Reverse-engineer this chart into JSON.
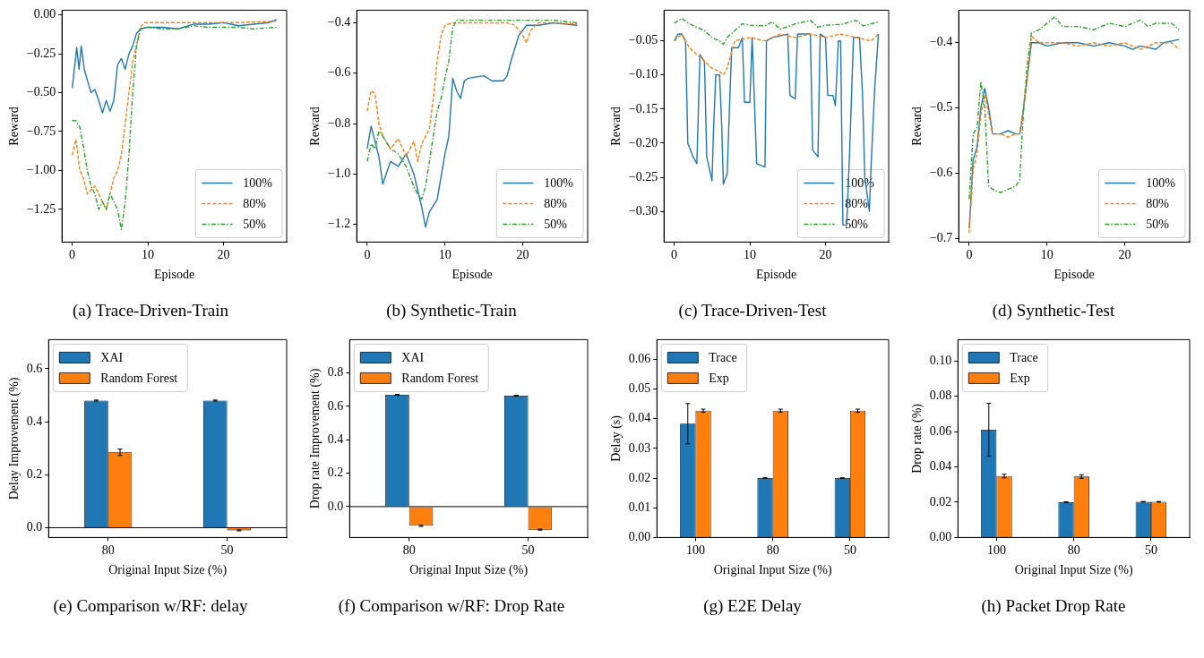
{
  "chart_data": [
    {
      "type": "line",
      "xlabel": "Episode",
      "ylabel": "Reward",
      "xlim": [
        -1.35,
        28.35
      ],
      "ylim": [
        -1.46,
        0.03
      ],
      "xticks": [
        0,
        10,
        20
      ],
      "yticks": [
        {
          "value": 0,
          "label": "0.00"
        },
        {
          "value": -0.25,
          "label": "−0.25"
        },
        {
          "value": -0.5,
          "label": "−0.50"
        },
        {
          "value": -0.75,
          "label": "−0.75"
        },
        {
          "value": -1,
          "label": "−1.00"
        },
        {
          "value": -1.25,
          "label": "−1.25"
        }
      ],
      "legend": "bottom right",
      "annotations": [
        "(a) Trace-Driven-Train"
      ],
      "series": [
        {
          "name": "100%",
          "color": "#1f77b4",
          "line_style": "solid",
          "x": [
            0,
            0.4,
            0.6,
            0.9,
            1.2,
            1.6,
            2,
            2.5,
            3,
            3.5,
            4,
            4.5,
            5,
            5.5,
            6,
            6.5,
            7,
            7.5,
            8,
            8.5,
            9,
            10,
            12,
            14,
            16,
            18,
            20,
            22,
            24,
            26,
            27
          ],
          "values": [
            -0.47,
            -0.3,
            -0.21,
            -0.35,
            -0.2,
            -0.35,
            -0.42,
            -0.5,
            -0.48,
            -0.55,
            -0.63,
            -0.55,
            -0.62,
            -0.55,
            -0.32,
            -0.28,
            -0.35,
            -0.25,
            -0.2,
            -0.12,
            -0.09,
            -0.08,
            -0.08,
            -0.09,
            -0.06,
            -0.06,
            -0.05,
            -0.07,
            -0.06,
            -0.05,
            -0.03
          ]
        },
        {
          "name": "80%",
          "color": "#ff7f0e",
          "line_style": "dashed",
          "x": [
            0,
            0.5,
            1,
            1.5,
            2,
            3,
            4,
            4.5,
            5,
            5.5,
            6,
            6.5,
            7,
            7.5,
            8,
            8.5,
            9,
            9.5,
            10,
            14,
            18,
            22,
            27
          ],
          "values": [
            -0.9,
            -0.8,
            -1,
            -1.05,
            -1.15,
            -1.1,
            -1.2,
            -1.25,
            -1.15,
            -1.05,
            -1,
            -0.9,
            -0.7,
            -0.5,
            -0.3,
            -0.2,
            -0.08,
            -0.05,
            -0.05,
            -0.05,
            -0.05,
            -0.05,
            -0.04
          ]
        },
        {
          "name": "50%",
          "color": "#2ca02c",
          "line_style": "dashdot",
          "x": [
            0,
            0.5,
            1,
            1.5,
            2,
            2.5,
            3,
            3.5,
            4,
            4.5,
            5,
            5.5,
            6,
            6.5,
            7,
            7.5,
            8,
            8.5,
            9,
            10,
            12,
            14,
            16,
            18,
            20,
            22,
            24,
            27
          ],
          "values": [
            -0.68,
            -0.68,
            -0.72,
            -0.85,
            -1,
            -1.1,
            -1.15,
            -1.25,
            -1.2,
            -1.25,
            -1.15,
            -1.2,
            -1.25,
            -1.38,
            -1.2,
            -0.9,
            -0.5,
            -0.2,
            -0.09,
            -0.08,
            -0.09,
            -0.09,
            -0.07,
            -0.08,
            -0.08,
            -0.08,
            -0.09,
            -0.08
          ]
        }
      ]
    },
    {
      "type": "line",
      "xlabel": "Episode",
      "ylabel": "Reward",
      "xlim": [
        -1.35,
        28.35
      ],
      "ylim": [
        -1.27,
        -0.35
      ],
      "xticks": [
        0,
        10,
        20
      ],
      "yticks": [
        {
          "value": -0.4,
          "label": "−0.4"
        },
        {
          "value": -0.6,
          "label": "−0.6"
        },
        {
          "value": -0.8,
          "label": "−0.8"
        },
        {
          "value": -1,
          "label": "−1.0"
        },
        {
          "value": -1.2,
          "label": "−1.2"
        }
      ],
      "legend": "bottom right",
      "annotations": [
        "(b) Synthetic-Train"
      ],
      "series": [
        {
          "name": "100%",
          "color": "#1f77b4",
          "line_style": "solid",
          "x": [
            0,
            0.5,
            1.5,
            2,
            3,
            4,
            5,
            6,
            7,
            7.5,
            8,
            9,
            10,
            10.5,
            11,
            11.5,
            12,
            12.5,
            13,
            15,
            16,
            17.5,
            18,
            18.5,
            19.5,
            20.5,
            22,
            24,
            27
          ],
          "values": [
            -0.9,
            -0.81,
            -0.93,
            -1.04,
            -0.95,
            -0.97,
            -0.92,
            -1,
            -1.13,
            -1.21,
            -1.15,
            -1.1,
            -0.92,
            -0.85,
            -0.62,
            -0.67,
            -0.7,
            -0.63,
            -0.62,
            -0.61,
            -0.63,
            -0.63,
            -0.61,
            -0.55,
            -0.45,
            -0.41,
            -0.41,
            -0.4,
            -0.41
          ]
        },
        {
          "name": "80%",
          "color": "#ff7f0e",
          "line_style": "dashed",
          "x": [
            0,
            0.5,
            1,
            1.5,
            2,
            3,
            4,
            5,
            6,
            6.5,
            7,
            8,
            8.5,
            9,
            9.5,
            10,
            11,
            14,
            18,
            19,
            20,
            20.5,
            21,
            22,
            24,
            27
          ],
          "values": [
            -0.75,
            -0.67,
            -0.68,
            -0.8,
            -0.85,
            -0.9,
            -0.86,
            -0.93,
            -0.87,
            -0.95,
            -0.88,
            -0.82,
            -0.7,
            -0.55,
            -0.45,
            -0.41,
            -0.4,
            -0.4,
            -0.4,
            -0.41,
            -0.45,
            -0.48,
            -0.43,
            -0.4,
            -0.4,
            -0.405
          ]
        },
        {
          "name": "50%",
          "color": "#2ca02c",
          "line_style": "dashdot",
          "x": [
            0,
            0.5,
            1,
            1.5,
            2,
            3,
            4,
            5,
            6,
            6.5,
            7,
            7.5,
            8,
            8.5,
            9,
            9.5,
            10,
            10.5,
            11,
            11.5,
            13,
            16,
            20,
            24,
            27
          ],
          "values": [
            -0.95,
            -0.88,
            -0.9,
            -0.83,
            -0.85,
            -0.9,
            -0.92,
            -0.97,
            -1.05,
            -1.08,
            -1.1,
            -1.05,
            -0.95,
            -0.85,
            -0.75,
            -0.7,
            -0.62,
            -0.55,
            -0.42,
            -0.39,
            -0.39,
            -0.39,
            -0.39,
            -0.39,
            -0.4
          ]
        }
      ]
    },
    {
      "type": "line",
      "xlabel": "Episode",
      "ylabel": "Reward",
      "xlim": [
        -1.35,
        28.35
      ],
      "ylim": [
        -0.345,
        -0.005
      ],
      "xticks": [
        0,
        10,
        20
      ],
      "yticks": [
        {
          "value": -0.05,
          "label": "−0.05"
        },
        {
          "value": -0.1,
          "label": "−0.10"
        },
        {
          "value": -0.15,
          "label": "−0.15"
        },
        {
          "value": -0.2,
          "label": "−0.20"
        },
        {
          "value": -0.25,
          "label": "−0.25"
        },
        {
          "value": -0.3,
          "label": "−0.30"
        }
      ],
      "legend": "bottom right",
      "annotations": [
        "(c) Trace-Driven-Test"
      ],
      "series": [
        {
          "name": "100%",
          "color": "#1f77b4",
          "line_style": "solid",
          "x": [
            0,
            0.5,
            1,
            1.5,
            1.8,
            2.5,
            3,
            3.2,
            3.4,
            4,
            4.3,
            5,
            5.2,
            5.5,
            6,
            6.3,
            6.5,
            7,
            7.3,
            7.6,
            8.5,
            9,
            9.3,
            10,
            10.3,
            10.9,
            12,
            12.2,
            13,
            15,
            15.3,
            16,
            16.3,
            18,
            18.3,
            19,
            19.3,
            20,
            20.3,
            21,
            21.3,
            21.7,
            22,
            22.3,
            22.8,
            23.2,
            23.7,
            24.5,
            24.9,
            25.2,
            25.8,
            26,
            26.5,
            27
          ],
          "values": [
            -0.05,
            -0.04,
            -0.04,
            -0.05,
            -0.2,
            -0.22,
            -0.23,
            -0.15,
            -0.07,
            -0.08,
            -0.22,
            -0.255,
            -0.18,
            -0.1,
            -0.1,
            -0.18,
            -0.26,
            -0.245,
            -0.15,
            -0.06,
            -0.06,
            -0.045,
            -0.14,
            -0.14,
            -0.045,
            -0.23,
            -0.235,
            -0.05,
            -0.045,
            -0.04,
            -0.13,
            -0.135,
            -0.04,
            -0.04,
            -0.21,
            -0.22,
            -0.04,
            -0.045,
            -0.13,
            -0.13,
            -0.145,
            -0.05,
            -0.05,
            -0.32,
            -0.32,
            -0.21,
            -0.045,
            -0.045,
            -0.13,
            -0.25,
            -0.3,
            -0.24,
            -0.12,
            -0.04
          ]
        },
        {
          "name": "80%",
          "color": "#ff7f0e",
          "line_style": "dashed",
          "x": [
            0,
            1,
            2,
            3,
            4,
            5,
            6,
            6.5,
            7,
            7.5,
            8,
            10,
            12,
            13,
            14,
            16,
            18,
            20,
            22,
            24,
            26,
            27
          ],
          "values": [
            -0.05,
            -0.04,
            -0.06,
            -0.07,
            -0.08,
            -0.09,
            -0.095,
            -0.1,
            -0.09,
            -0.07,
            -0.05,
            -0.045,
            -0.05,
            -0.045,
            -0.04,
            -0.045,
            -0.04,
            -0.045,
            -0.04,
            -0.045,
            -0.05,
            -0.04
          ]
        },
        {
          "name": "50%",
          "color": "#2ca02c",
          "line_style": "dashdot",
          "x": [
            0,
            1,
            2,
            3,
            4,
            5,
            6,
            6.5,
            7,
            8,
            9,
            10,
            12,
            13,
            14,
            16,
            18,
            19,
            20,
            22,
            24,
            25,
            27
          ],
          "values": [
            -0.024,
            -0.017,
            -0.025,
            -0.03,
            -0.035,
            -0.045,
            -0.05,
            -0.055,
            -0.045,
            -0.035,
            -0.025,
            -0.027,
            -0.028,
            -0.022,
            -0.033,
            -0.025,
            -0.02,
            -0.03,
            -0.027,
            -0.026,
            -0.02,
            -0.028,
            -0.022
          ]
        }
      ]
    },
    {
      "type": "line",
      "xlabel": "Episode",
      "ylabel": "Reward",
      "xlim": [
        -1.35,
        28.35
      ],
      "ylim": [
        -0.706,
        -0.35
      ],
      "xticks": [
        0,
        10,
        20
      ],
      "yticks": [
        {
          "value": -0.4,
          "label": "−0.4"
        },
        {
          "value": -0.5,
          "label": "−0.5"
        },
        {
          "value": -0.6,
          "label": "−0.6"
        },
        {
          "value": -0.7,
          "label": "−0.7"
        }
      ],
      "legend": "bottom right",
      "annotations": [
        "(d) Synthetic-Test"
      ],
      "series": [
        {
          "name": "100%",
          "color": "#1f77b4",
          "line_style": "solid",
          "x": [
            0,
            0.5,
            1,
            1.5,
            2,
            2.5,
            3,
            4,
            5,
            6,
            6.5,
            7,
            7.5,
            8,
            9,
            10,
            12,
            14,
            16,
            18,
            20,
            21,
            22,
            24,
            25,
            27
          ],
          "values": [
            -0.685,
            -0.58,
            -0.56,
            -0.5,
            -0.47,
            -0.5,
            -0.54,
            -0.54,
            -0.535,
            -0.54,
            -0.54,
            -0.5,
            -0.45,
            -0.4,
            -0.4,
            -0.405,
            -0.4,
            -0.4,
            -0.405,
            -0.4,
            -0.405,
            -0.41,
            -0.405,
            -0.41,
            -0.4,
            -0.395
          ]
        },
        {
          "name": "80%",
          "color": "#ff7f0e",
          "line_style": "dashed",
          "x": [
            0,
            0.5,
            1,
            1.5,
            2,
            2.5,
            3,
            4,
            5,
            6,
            6.5,
            7,
            7.5,
            8,
            9,
            10,
            12,
            14,
            16,
            18,
            20,
            22,
            24,
            26,
            27
          ],
          "values": [
            -0.692,
            -0.595,
            -0.57,
            -0.51,
            -0.48,
            -0.51,
            -0.54,
            -0.54,
            -0.545,
            -0.54,
            -0.54,
            -0.5,
            -0.45,
            -0.39,
            -0.4,
            -0.4,
            -0.4,
            -0.405,
            -0.4,
            -0.405,
            -0.4,
            -0.41,
            -0.4,
            -0.4,
            -0.41
          ]
        },
        {
          "name": "50%",
          "color": "#2ca02c",
          "line_style": "dashdot",
          "x": [
            0,
            0.5,
            1,
            1.5,
            2,
            2.5,
            3,
            4,
            5,
            6,
            6.5,
            7,
            7.5,
            8,
            9,
            10,
            11,
            12,
            14,
            16,
            18,
            20,
            22,
            23,
            24,
            26,
            27
          ],
          "values": [
            -0.64,
            -0.54,
            -0.53,
            -0.46,
            -0.5,
            -0.62,
            -0.625,
            -0.63,
            -0.625,
            -0.62,
            -0.61,
            -0.5,
            -0.43,
            -0.385,
            -0.38,
            -0.37,
            -0.36,
            -0.375,
            -0.375,
            -0.38,
            -0.37,
            -0.375,
            -0.365,
            -0.375,
            -0.37,
            -0.37,
            -0.38
          ]
        }
      ]
    },
    {
      "type": "bar",
      "xlabel": "Original Input Size (%)",
      "ylabel": "Delay Improvement (%)",
      "categories": [
        "80",
        "50"
      ],
      "ylim": [
        -0.037,
        0.71
      ],
      "yticks": [
        {
          "value": 0,
          "label": "0.0"
        },
        {
          "value": 0.2,
          "label": "0.2"
        },
        {
          "value": 0.4,
          "label": "0.4"
        },
        {
          "value": 0.6,
          "label": "0.6"
        }
      ],
      "legend": "top left",
      "ref_lines": [
        {
          "axis": "y",
          "value": 0,
          "color": "#000000"
        }
      ],
      "annotations": [
        "(e) Comparison w/RF: delay"
      ],
      "series": [
        {
          "name": "XAI",
          "color": "#1f77b4",
          "values": [
            0.48,
            0.48
          ],
          "errors": [
            0.002,
            0.002
          ]
        },
        {
          "name": "Random Forest",
          "color": "#ff7f0e",
          "values": [
            0.285,
            -0.01
          ],
          "errors": [
            0.012,
            0.002
          ]
        }
      ]
    },
    {
      "type": "bar",
      "xlabel": "Original Input Size (%)",
      "ylabel": "Drop rate Improvement (%)",
      "categories": [
        "80",
        "50"
      ],
      "ylim": [
        -0.185,
        1
      ],
      "yticks": [
        {
          "value": 0,
          "label": "0.0"
        },
        {
          "value": 0.2,
          "label": "0.2"
        },
        {
          "value": 0.4,
          "label": "0.4"
        },
        {
          "value": 0.6,
          "label": "0.6"
        },
        {
          "value": 0.8,
          "label": "0.8"
        }
      ],
      "legend": "top left",
      "ref_lines": [
        {
          "axis": "y",
          "value": 0,
          "color": "#000000"
        }
      ],
      "annotations": [
        "(f) Comparison w/RF: Drop Rate"
      ],
      "series": [
        {
          "name": "XAI",
          "color": "#1f77b4",
          "values": [
            0.67,
            0.665
          ],
          "errors": [
            0.002,
            0.002
          ]
        },
        {
          "name": "Random Forest",
          "color": "#ff7f0e",
          "values": [
            -0.115,
            -0.138
          ],
          "errors": [
            0.004,
            0.003
          ]
        }
      ]
    },
    {
      "type": "bar",
      "xlabel": "Original Input Size (%)",
      "ylabel": "Delay (s)",
      "categories": [
        "100",
        "80",
        "50"
      ],
      "ylim": [
        0,
        0.0666
      ],
      "yticks": [
        {
          "value": 0,
          "label": "0.00"
        },
        0.01,
        0.02,
        0.03,
        0.04,
        0.05,
        0.06
      ],
      "legend": "top left",
      "annotations": [
        "(g) E2E Delay"
      ],
      "series": [
        {
          "name": "Trace",
          "color": "#1f77b4",
          "values": [
            0.0383,
            0.02,
            0.02
          ],
          "errors": [
            0.0068,
            0.0001,
            0.0001
          ]
        },
        {
          "name": "Exp",
          "color": "#ff7f0e",
          "values": [
            0.0427,
            0.0427,
            0.0427
          ],
          "errors": [
            0.0005,
            0.0005,
            0.0005
          ]
        }
      ]
    },
    {
      "type": "bar",
      "xlabel": "Original Input Size (%)",
      "ylabel": "Drop rate (%)",
      "categories": [
        "100",
        "80",
        "50"
      ],
      "ylim": [
        0,
        0.112
      ],
      "yticks": [
        {
          "value": 0,
          "label": "0.00"
        },
        0.02,
        0.04,
        0.06,
        0.08,
        {
          "value": 0.1,
          "label": "0.10"
        }
      ],
      "legend": "top left",
      "annotations": [
        "(h) Packet Drop Rate"
      ],
      "series": [
        {
          "name": "Trace",
          "color": "#1f77b4",
          "values": [
            0.061,
            0.02,
            0.0202
          ],
          "errors": [
            0.015,
            0.0002,
            0.0002
          ]
        },
        {
          "name": "Exp",
          "color": "#ff7f0e",
          "values": [
            0.0348,
            0.0345,
            0.0202
          ],
          "errors": [
            0.001,
            0.001,
            0.0002
          ]
        }
      ]
    }
  ]
}
